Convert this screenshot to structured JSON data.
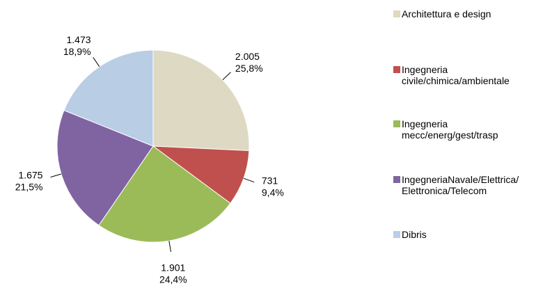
{
  "chart_data": {
    "type": "pie",
    "categories": [
      "Architettura e design",
      "Ingegneria\ncivile/chimica/ambientale",
      "Ingegneria\nmecc/energ/gest/trasp",
      "IngegneriaNavale/Elettrica/\nElettronica/Telecom",
      "Dibris"
    ],
    "values": [
      2005,
      731,
      1901,
      1675,
      1473
    ],
    "value_labels": [
      "2.005",
      "731",
      "1.901",
      "1.675",
      "1.473"
    ],
    "percents": [
      25.8,
      9.4,
      24.4,
      21.5,
      18.9
    ],
    "percent_labels": [
      "25,8%",
      "9,4%",
      "24,4%",
      "21,5%",
      "18,9%"
    ],
    "colors": [
      "#ddd9c3",
      "#c0504d",
      "#9bbb59",
      "#8064a2",
      "#b9cde5"
    ],
    "legend": "right"
  }
}
